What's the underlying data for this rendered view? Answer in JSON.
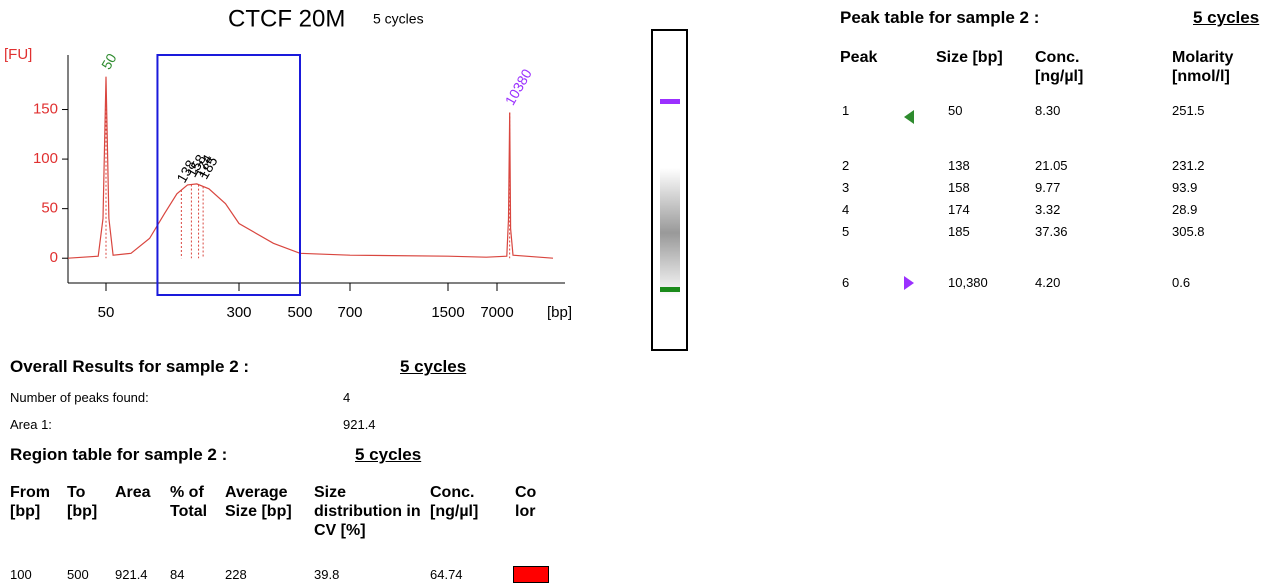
{
  "chart_data": {
    "type": "line",
    "title": "CTCF 20M",
    "subtitle": "5 cycles",
    "y_label": "[FU]",
    "x_label": "[bp]",
    "x": [
      30,
      45,
      48,
      50,
      52,
      55,
      70,
      90,
      110,
      130,
      150,
      170,
      200,
      250,
      300,
      400,
      500,
      700,
      1500,
      5000,
      9500,
      10000,
      10380,
      10700,
      11500,
      40000
    ],
    "values": [
      0,
      2,
      40,
      183,
      40,
      3,
      5,
      20,
      45,
      65,
      74,
      75,
      70,
      55,
      35,
      15,
      5,
      3,
      2,
      1,
      2,
      40,
      147,
      30,
      3,
      0
    ],
    "color": "#d9463f",
    "xlim": [
      30,
      40000
    ],
    "xticks": [
      50,
      300,
      500,
      700,
      1500,
      7000
    ],
    "ylim": [
      -25,
      205
    ],
    "yticks": [
      0,
      50,
      100,
      150
    ],
    "peaks": [
      {
        "x": 50,
        "color": "#2e8b2e"
      },
      {
        "x": 138,
        "color": "#000000"
      },
      {
        "x": 158,
        "color": "#000000"
      },
      {
        "x": 174,
        "color": "#000000"
      },
      {
        "x": 185,
        "color": "#000000"
      },
      {
        "x": 10380,
        "color": "#9b30ff"
      }
    ],
    "region": [
      100,
      500
    ],
    "region_color": "#1a1adb"
  },
  "peak_table": {
    "title": "Peak table for sample 2 :",
    "sample": "5 cycles",
    "headers": [
      "Peak",
      "Size [bp]",
      "Conc.\n[ng/µl]",
      "Molarity\n[nmol/l]"
    ],
    "rows": [
      [
        "1",
        "50",
        "8.30",
        "251.5"
      ],
      [
        "2",
        "138",
        "21.05",
        "231.2"
      ],
      [
        "3",
        "158",
        "9.77",
        "93.9"
      ],
      [
        "4",
        "174",
        "3.32",
        "28.9"
      ],
      [
        "5",
        "185",
        "37.36",
        "305.8"
      ],
      [
        "6",
        "10,380",
        "4.20",
        "0.6"
      ]
    ]
  },
  "overall": {
    "title": "Overall Results for sample 2 :",
    "sample": "5 cycles",
    "items": [
      [
        "Number of peaks found:",
        "4"
      ],
      [
        "Area 1:",
        "921.4"
      ]
    ]
  },
  "region_table": {
    "title": "Region table for sample 2 :",
    "sample": "5 cycles",
    "headers": [
      "From\n[bp]",
      "To\n[bp]",
      "Area",
      "% of\nTotal",
      "Average\nSize [bp]",
      "Size\ndistribution in\nCV [%]",
      "Conc.\n[ng/µl]",
      "Co\nlor"
    ],
    "rows": [
      [
        "100",
        "500",
        "921.4",
        "84",
        "228",
        "39.8",
        "64.74"
      ]
    ],
    "color": "#ff0000"
  }
}
